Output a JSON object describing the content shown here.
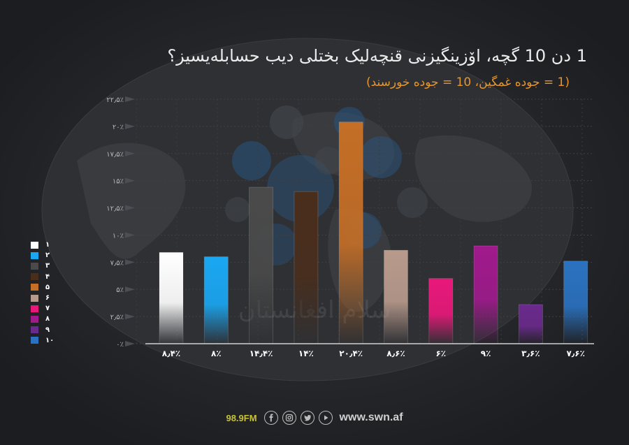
{
  "title": "1 دن 10 گچه، اۆزینگیزنی قنچه‌لیک بختلی دیب حسابله‌یسیز؟",
  "subtitle": "(1 = جوده غمگین، 10 = جوده خورسند)",
  "watermark": "سلام افغانستان",
  "colors": {
    "background": "#222326",
    "title": "#ececec",
    "subtitle": "#e8962a",
    "axis": "#d0d0d0"
  },
  "chart_data": {
    "type": "bar",
    "categories": [
      "۱",
      "۲",
      "۳",
      "۴",
      "۵",
      "۶",
      "۷",
      "۸",
      "۹",
      "۱۰"
    ],
    "values": [
      8.4,
      8,
      14.4,
      14,
      20.4,
      8.6,
      6,
      9,
      3.6,
      7.6
    ],
    "data_labels": [
      "۸٫۴٪",
      "۸٪",
      "۱۴٫۴٪",
      "۱۴٪",
      "۲۰٫۴٪",
      "۸٫۶٪",
      "۶٪",
      "۹٪",
      "۳٫۶٪",
      "۷٫۶٪"
    ],
    "colors": [
      "#ffffff",
      "#1aa7f2",
      "#4a4a4a",
      "#4a2e1c",
      "#c46e26",
      "#b89a8c",
      "#e8187a",
      "#a01a8c",
      "#6a2a8c",
      "#2a72c0"
    ],
    "ylim": [
      0,
      22.5
    ],
    "yticks": [
      0,
      2.5,
      5,
      7.5,
      10,
      12.5,
      15,
      17.5,
      20,
      22.5
    ],
    "ytick_labels": [
      "۰٪",
      "۲٫۵٪",
      "۵٪",
      "۷٫۵٪",
      "۱۰٪",
      "۱۲٫۵٪",
      "۱۵٪",
      "۱۷٫۵٪",
      "۲۰٪",
      "۲۲٫۵٪"
    ],
    "legend": {
      "position": "left",
      "entries": [
        "۱",
        "۲",
        "۳",
        "۴",
        "۵",
        "۶",
        "۷",
        "۸",
        "۹",
        "۱۰"
      ]
    },
    "xlabel": "",
    "ylabel": "",
    "grid": true
  },
  "footer": {
    "radio": "98.9FM",
    "social_icons": [
      "facebook-icon",
      "instagram-icon",
      "twitter-icon",
      "play-icon"
    ],
    "website": "www.swn.af"
  }
}
